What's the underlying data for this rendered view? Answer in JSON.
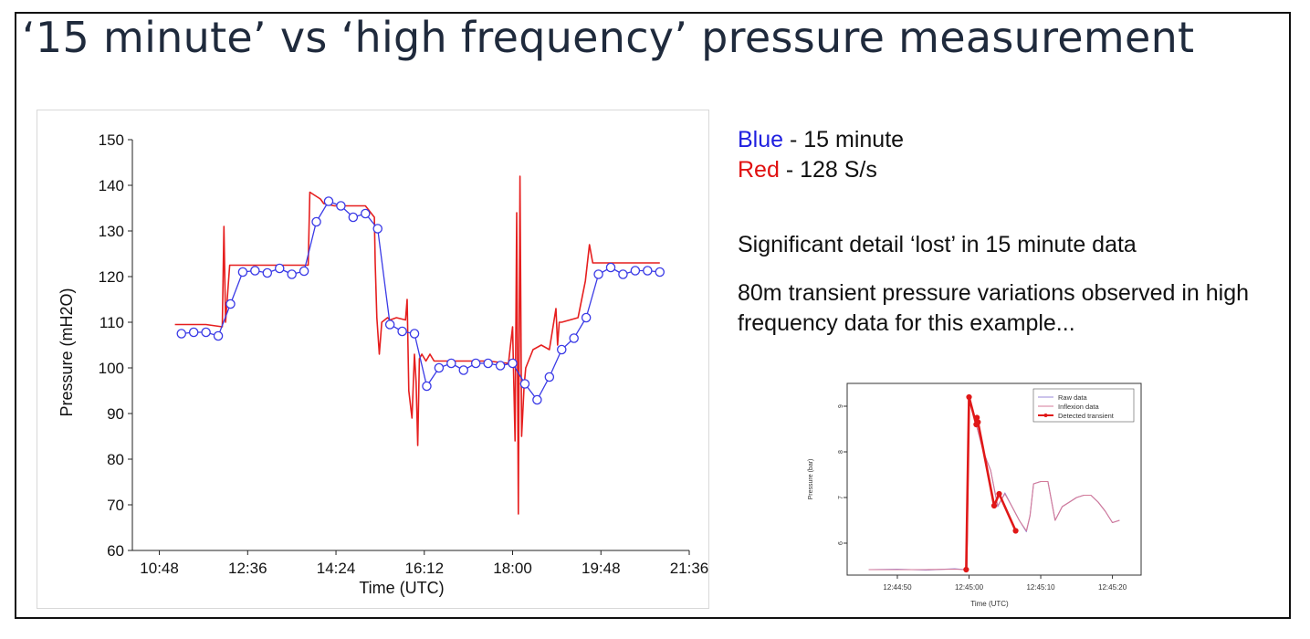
{
  "slide": {
    "title": "‘15 minute’ vs ‘high frequency’ pressure measurement"
  },
  "legend": {
    "blue_word": "Blue",
    "blue_rest": " - 15 minute",
    "red_word": "Red",
    "red_rest": " - 128 S/s"
  },
  "notes": {
    "line1": "Significant detail ‘lost’ in 15 minute data",
    "line2": "80m transient pressure variations observed in high frequency data for this example..."
  },
  "colors": {
    "blue": "#3a3ae6",
    "red": "#e61e1e",
    "title": "#1f2a3c"
  },
  "chart_data": [
    {
      "type": "line",
      "xlabel": "Time (UTC)",
      "ylabel": "Pressure (mH2O)",
      "ylim": [
        60,
        150
      ],
      "xlim": [
        "10:15",
        "21:36"
      ],
      "x_ticks": [
        "10:48",
        "12:36",
        "14:24",
        "16:12",
        "18:00",
        "19:48",
        "21:36"
      ],
      "y_ticks": [
        60,
        70,
        80,
        90,
        100,
        110,
        120,
        130,
        140,
        150
      ],
      "grid": false,
      "series": [
        {
          "name": "Blue",
          "color": "#3a3ae6",
          "marker": "circle",
          "x": [
            "11:15",
            "11:30",
            "11:45",
            "12:00",
            "12:15",
            "12:30",
            "12:45",
            "13:00",
            "13:15",
            "13:30",
            "13:45",
            "14:00",
            "14:15",
            "14:30",
            "14:45",
            "15:00",
            "15:15",
            "15:30",
            "15:45",
            "16:00",
            "16:15",
            "16:30",
            "16:45",
            "17:00",
            "17:15",
            "17:30",
            "17:45",
            "18:00",
            "18:15",
            "18:30",
            "18:45",
            "19:00",
            "19:15",
            "19:30",
            "19:45",
            "20:00",
            "20:15",
            "20:30",
            "20:45",
            "21:00"
          ],
          "y": [
            107.5,
            107.8,
            107.8,
            107.0,
            114.0,
            121.0,
            121.3,
            120.8,
            121.8,
            120.5,
            121.2,
            132.0,
            136.5,
            135.5,
            133.0,
            133.8,
            130.5,
            109.5,
            108.0,
            107.5,
            96.0,
            100.0,
            101.0,
            99.5,
            101.0,
            101.0,
            100.5,
            101.0,
            96.5,
            93.0,
            98.0,
            104.0,
            106.5,
            111.0,
            120.5,
            122.0,
            120.5,
            121.3,
            121.3,
            121.0
          ]
        },
        {
          "name": "Red",
          "color": "#e61e1e",
          "x": [
            "11:07",
            "11:45",
            "12:05",
            "12:07",
            "12:09",
            "12:14",
            "13:50",
            "13:52",
            "14:05",
            "14:09",
            "14:22",
            "15:00",
            "15:11",
            "15:12",
            "15:14",
            "15:17",
            "15:20",
            "15:27",
            "15:30",
            "15:38",
            "15:49",
            "15:51",
            "15:53",
            "15:57",
            "16:00",
            "16:02",
            "16:04",
            "16:06",
            "16:09",
            "16:14",
            "16:19",
            "16:24",
            "16:30",
            "17:00",
            "17:30",
            "17:55",
            "18:00",
            "18:03",
            "18:05",
            "18:07",
            "18:09",
            "18:11",
            "18:14",
            "18:16",
            "18:25",
            "18:35",
            "18:45",
            "18:53",
            "18:55",
            "18:57",
            "19:00",
            "19:20",
            "19:29",
            "19:34",
            "19:38",
            "20:00",
            "20:30",
            "21:00"
          ],
          "y": [
            109.5,
            109.5,
            109.0,
            131.0,
            110.0,
            122.5,
            122.5,
            138.5,
            137.0,
            136.0,
            135.5,
            135.5,
            133.0,
            123.0,
            111.0,
            103.0,
            110.0,
            111.0,
            110.5,
            111.0,
            110.5,
            115.0,
            95.0,
            89.0,
            103.0,
            97.0,
            83.0,
            102.0,
            103.0,
            101.5,
            103.0,
            101.5,
            101.5,
            101.5,
            101.5,
            101.0,
            109.0,
            84.0,
            134.0,
            68.0,
            142.0,
            85.0,
            96.0,
            100.0,
            104.0,
            105.0,
            104.0,
            113.0,
            105.0,
            110.0,
            110.0,
            111.0,
            119.0,
            127.0,
            123.0,
            123.0,
            123.0,
            123.0
          ]
        }
      ]
    },
    {
      "type": "line",
      "xlabel": "Time (UTC)",
      "ylabel": "Pressure (bar)",
      "x_ticks": [
        "12:44:50",
        "12:45:00",
        "12:45:10",
        "12:45:20"
      ],
      "y_ticks": [
        6,
        7,
        8,
        9
      ],
      "ylim": [
        5.3,
        9.5
      ],
      "legend_position": "top-right",
      "grid": false,
      "series": [
        {
          "name": "Raw data",
          "color": "#9a8ad8",
          "x": [
            -14,
            -10,
            -6,
            -2,
            -0.6,
            -0.3,
            0,
            0.5,
            1,
            1.5,
            2,
            3,
            4,
            5,
            6,
            7,
            8,
            8.5,
            9,
            10,
            11,
            12,
            13,
            14,
            15,
            16,
            17,
            18,
            19,
            20,
            21
          ],
          "y": [
            5.42,
            5.43,
            5.41,
            5.44,
            5.42,
            5.45,
            9.22,
            8.9,
            8.6,
            8.3,
            8.0,
            7.6,
            6.8,
            7.1,
            6.8,
            6.5,
            6.25,
            6.6,
            7.3,
            7.35,
            7.35,
            6.5,
            6.8,
            6.9,
            7.0,
            7.05,
            7.05,
            6.9,
            6.7,
            6.45,
            6.5
          ]
        },
        {
          "name": "Inflexion data",
          "color": "#d47a98",
          "x": [
            -14,
            -10,
            -6,
            -2,
            -0.6,
            -0.3,
            0,
            0.5,
            1,
            1.5,
            2,
            3,
            4,
            5,
            6,
            7,
            8,
            8.5,
            9,
            10,
            11,
            12,
            13,
            14,
            15,
            16,
            17,
            18,
            19,
            20,
            21
          ],
          "y": [
            5.42,
            5.42,
            5.42,
            5.43,
            5.42,
            5.44,
            9.2,
            8.9,
            8.6,
            8.3,
            8.0,
            7.6,
            6.82,
            7.08,
            6.8,
            6.5,
            6.27,
            6.6,
            7.3,
            7.35,
            7.35,
            6.5,
            6.8,
            6.9,
            7.0,
            7.05,
            7.05,
            6.9,
            6.7,
            6.45,
            6.5
          ]
        },
        {
          "name": "Detected transient",
          "color": "#e01818",
          "marker": "circle",
          "x": [
            -0.4,
            0,
            1,
            1.1,
            1.25,
            3.5,
            4.2,
            6.5
          ],
          "y": [
            5.42,
            9.2,
            8.6,
            8.75,
            8.65,
            6.82,
            7.08,
            6.27
          ]
        }
      ]
    }
  ]
}
